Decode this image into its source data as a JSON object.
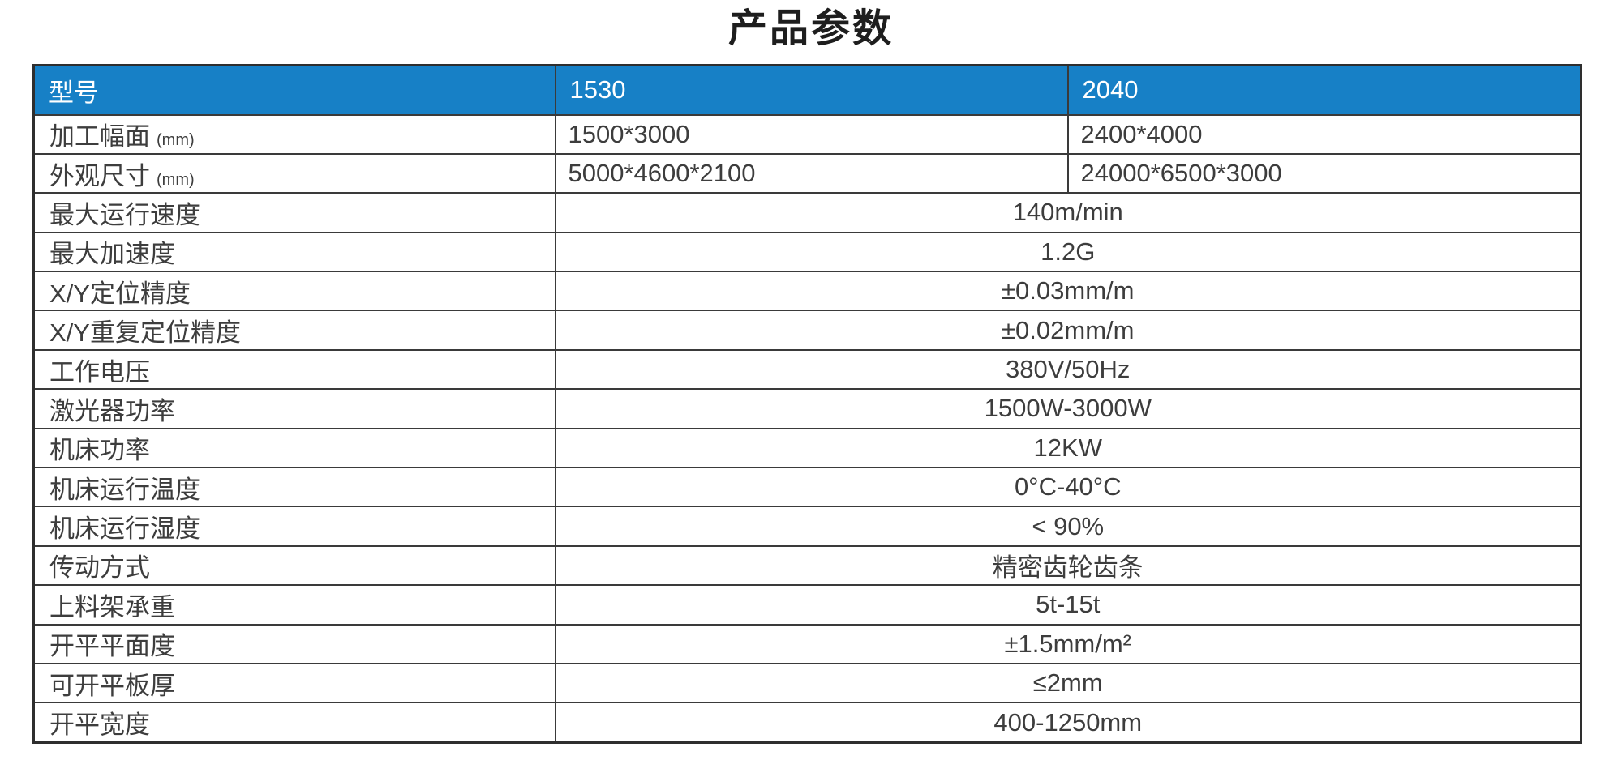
{
  "title": "产品参数",
  "colors": {
    "header_bg": "#1780c6",
    "header_text": "#ffffff",
    "border": "#3a3a3a",
    "text": "#3d3d3d"
  },
  "table": {
    "header": {
      "col1": "型号",
      "col2": "1530",
      "col3": "2040"
    },
    "rows": [
      {
        "label": "加工幅面",
        "label_suffix": "(mm)",
        "type": "split",
        "values": [
          "1500*3000",
          "2400*4000"
        ]
      },
      {
        "label": "外观尺寸",
        "label_suffix": "(mm)",
        "type": "split",
        "values": [
          "5000*4600*2100",
          "24000*6500*3000"
        ]
      },
      {
        "label": "最大运行速度",
        "type": "merged",
        "value": "140m/min"
      },
      {
        "label": "最大加速度",
        "type": "merged",
        "value": "1.2G"
      },
      {
        "label": "X/Y定位精度",
        "type": "merged",
        "value": "±0.03mm/m"
      },
      {
        "label": "X/Y重复定位精度",
        "type": "merged",
        "value": "±0.02mm/m"
      },
      {
        "label": "工作电压",
        "type": "merged",
        "value": "380V/50Hz"
      },
      {
        "label": "激光器功率",
        "type": "merged",
        "value": "1500W-3000W"
      },
      {
        "label": "机床功率",
        "type": "merged",
        "value": "12KW"
      },
      {
        "label": "机床运行温度",
        "type": "merged",
        "value": "0°C-40°C"
      },
      {
        "label": "机床运行湿度",
        "type": "merged",
        "value": "< 90%"
      },
      {
        "label": "传动方式",
        "type": "merged",
        "value": "精密齿轮齿条"
      },
      {
        "label": "上料架承重",
        "type": "merged",
        "value": "5t-15t"
      },
      {
        "label": "开平平面度",
        "type": "merged",
        "value": "±1.5mm/m²"
      },
      {
        "label": "可开平板厚",
        "type": "merged",
        "value": "≤2mm"
      },
      {
        "label": "开平宽度",
        "type": "merged",
        "value": "400-1250mm"
      }
    ]
  }
}
